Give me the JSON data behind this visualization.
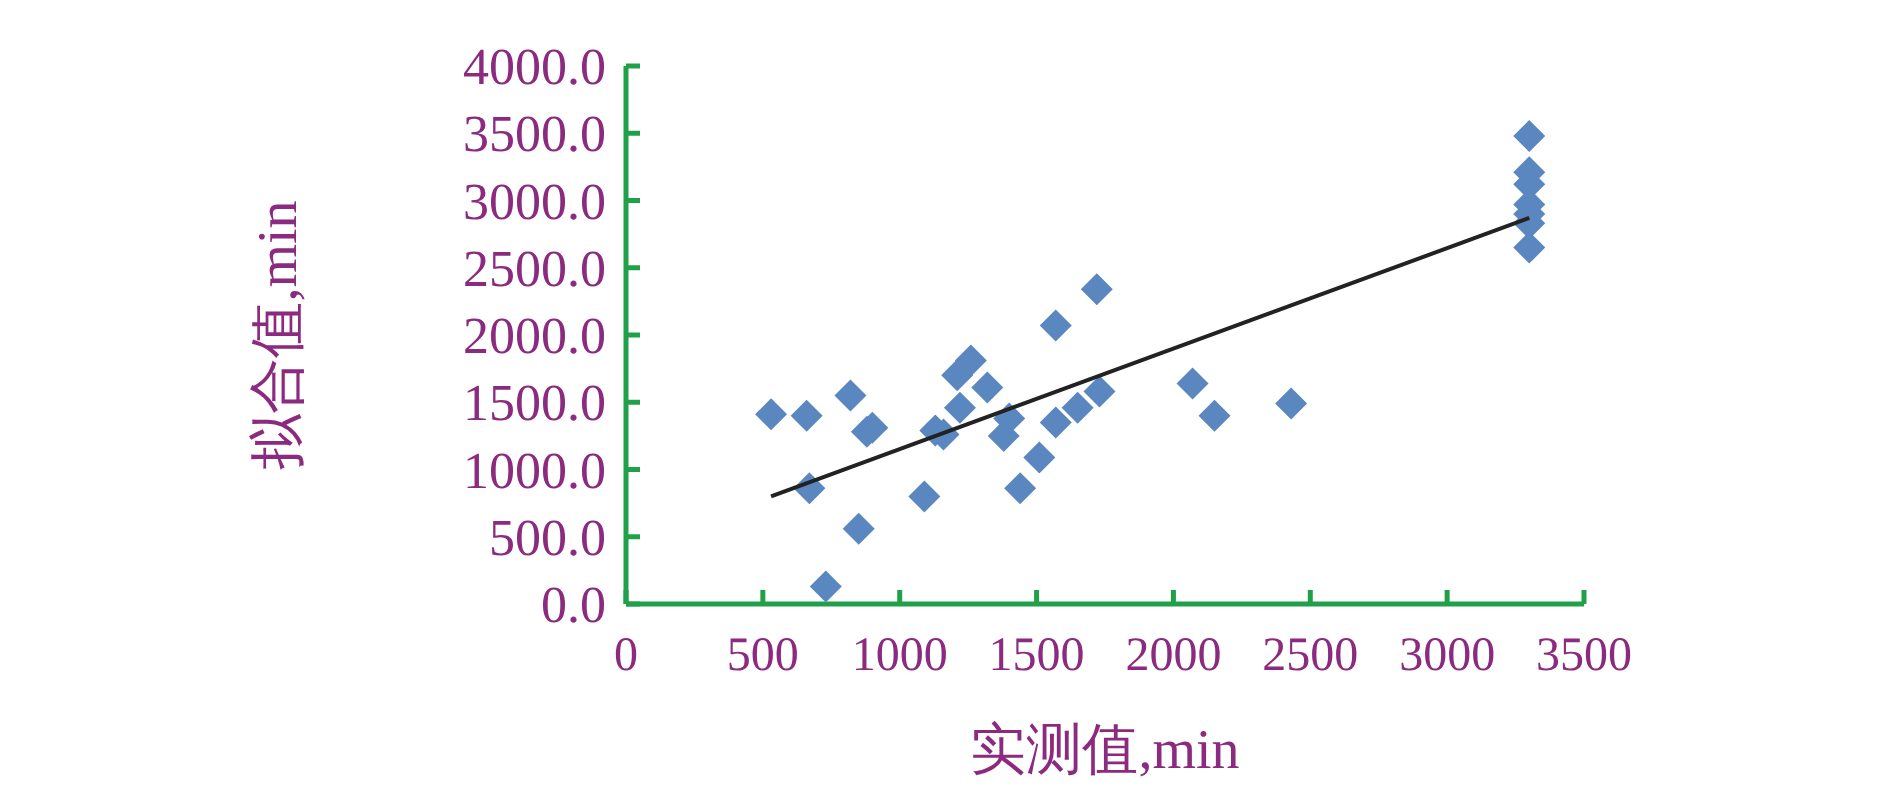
{
  "chart_data": {
    "type": "scatter",
    "xlabel": "实测值,min",
    "ylabel": "拟合值,min",
    "marker": "diamond",
    "xlim": [
      0,
      3500
    ],
    "xticks": [
      0,
      500,
      1000,
      1500,
      2000,
      2500,
      3000,
      3500
    ],
    "ylim": [
      0,
      4000
    ],
    "yticks": [
      {
        "value": 0,
        "label": "0.0"
      },
      {
        "value": 500,
        "label": "500.0"
      },
      {
        "value": 1000,
        "label": "1000.0"
      },
      {
        "value": 1500,
        "label": "1500.0"
      },
      {
        "value": 2000,
        "label": "2000.0"
      },
      {
        "value": 2500,
        "label": "2500.0"
      },
      {
        "value": 3000,
        "label": "3000.0"
      },
      {
        "value": 3500,
        "label": "3500.0"
      },
      {
        "value": 4000,
        "label": "4000.0"
      }
    ],
    "series": [
      {
        "color": "#5b87c0",
        "x": [
          530,
          660,
          670,
          730,
          820,
          850,
          880,
          900,
          1090,
          1130,
          1160,
          1210,
          1220,
          1260,
          1320,
          1380,
          1400,
          1440,
          1510,
          1570,
          1570,
          1650,
          1720,
          1730,
          2070,
          2150,
          2430,
          3300,
          3300,
          3300,
          3300,
          3300,
          3300,
          3300
        ],
        "values": [
          1410,
          1400,
          860,
          130,
          1550,
          560,
          1280,
          1310,
          800,
          1290,
          1260,
          1700,
          1460,
          1810,
          1610,
          1250,
          1380,
          860,
          1090,
          2070,
          1350,
          1460,
          2340,
          1580,
          1640,
          1400,
          1490,
          3480,
          3210,
          3120,
          2970,
          2900,
          2830,
          2650
        ]
      },
      {
        "type": "line",
        "color": "#222222",
        "marker": "none",
        "x": [
          530,
          3300
        ],
        "values": [
          800,
          2870
        ]
      }
    ]
  }
}
